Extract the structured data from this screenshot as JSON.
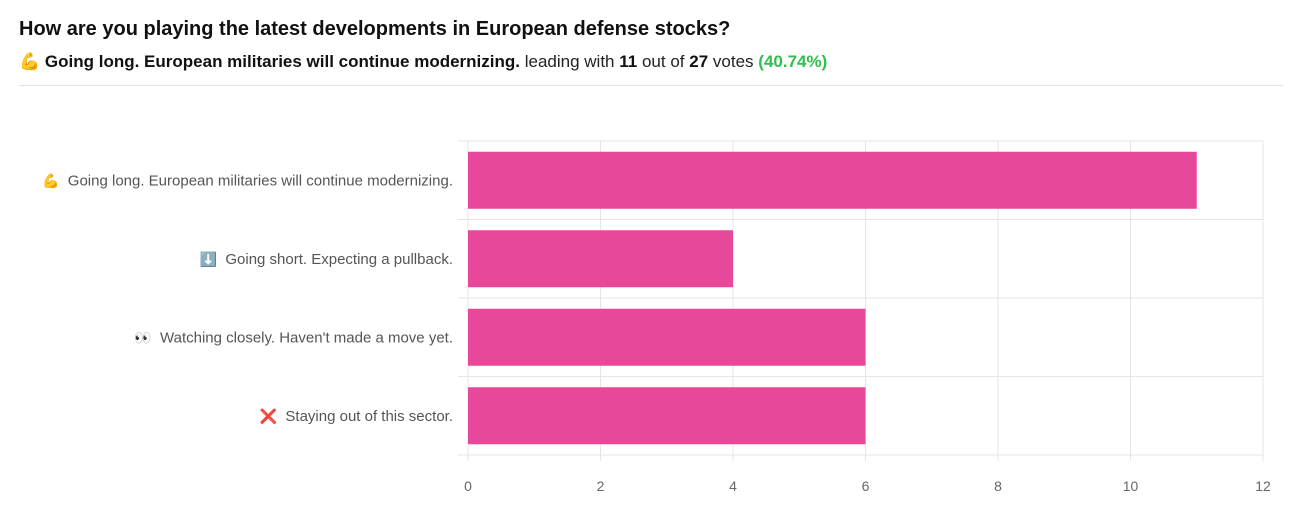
{
  "header": {
    "title": "How are you playing the latest developments in European defense stocks?",
    "leader_emoji": "💪",
    "leader_label": "Going long. European militaries will continue modernizing.",
    "leading_with": "leading with",
    "leader_votes": "11",
    "out_of": "out of",
    "total_votes": "27",
    "votes_word": "votes",
    "leader_percent": "(40.74%)"
  },
  "colors": {
    "bar": "#e8489a",
    "grid": "#e5e5e5",
    "percent": "#2fbf4f"
  },
  "chart_data": {
    "type": "bar",
    "orientation": "horizontal",
    "categories": [
      {
        "emoji": "💪",
        "label": "Going long. European militaries will continue modernizing."
      },
      {
        "emoji": "⬇️",
        "label": "Going short. Expecting a pullback."
      },
      {
        "emoji": "👀",
        "label": "Watching closely. Haven't made a move yet."
      },
      {
        "emoji": "❌",
        "label": "Staying out of this sector."
      }
    ],
    "values": [
      11,
      4,
      6,
      6
    ],
    "xlim": [
      0,
      12
    ],
    "xticks": [
      "0",
      "2",
      "4",
      "6",
      "8",
      "10",
      "12"
    ],
    "grid": true,
    "title": "",
    "xlabel": "",
    "ylabel": ""
  }
}
